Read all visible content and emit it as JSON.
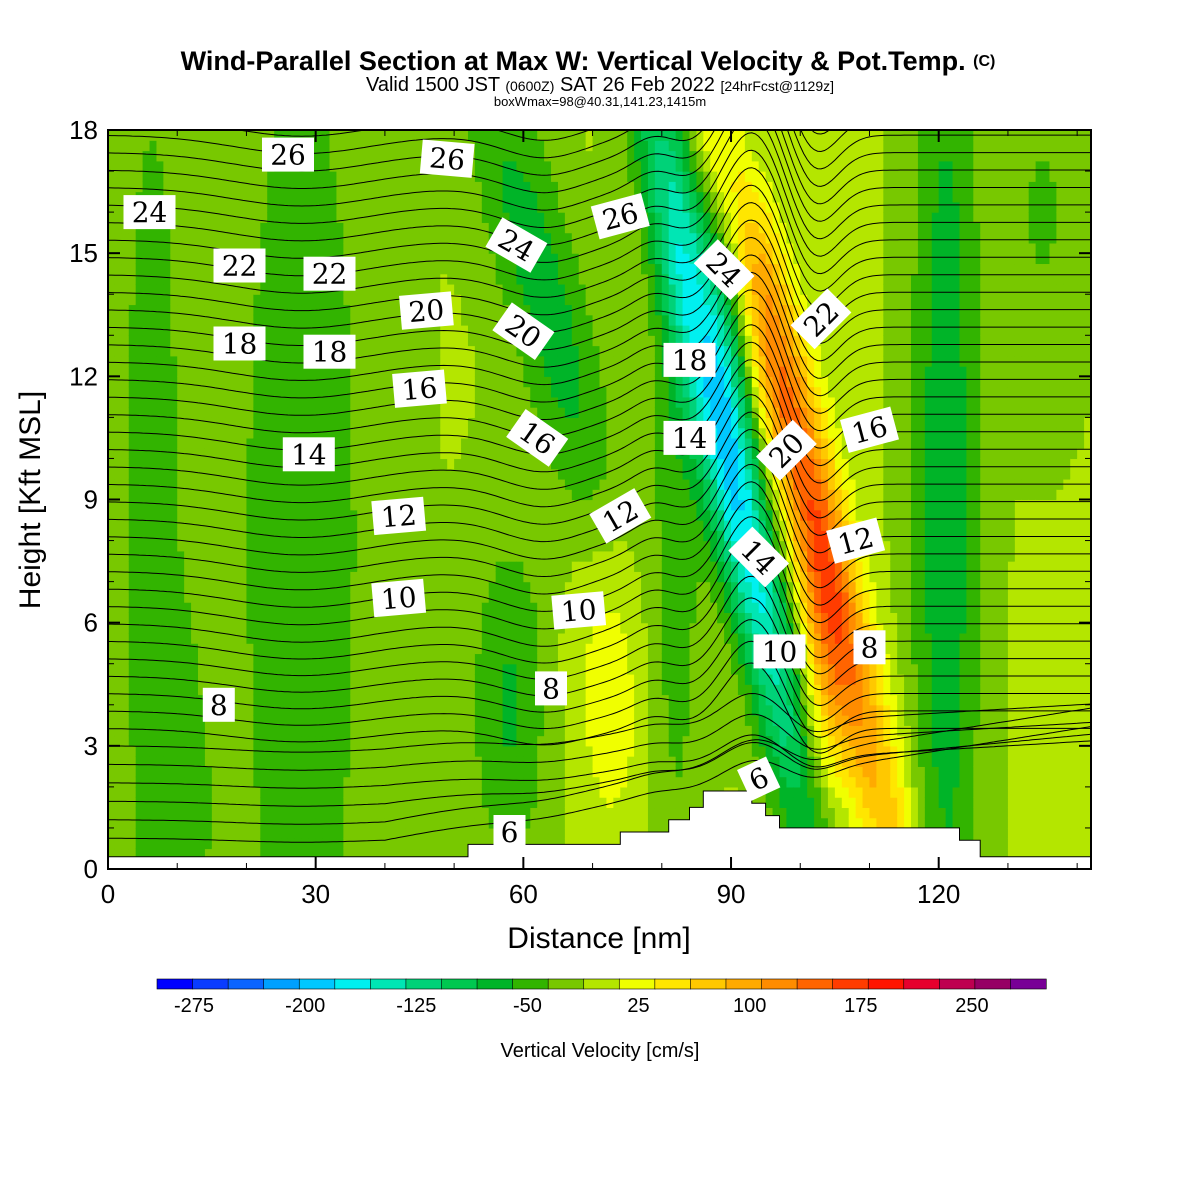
{
  "chart_data": {
    "type": "heatmap",
    "title": "Wind-Parallel Section at Max W: Vertical Velocity & Pot.Temp.",
    "title_unit": "(C)",
    "subtitle_parts": [
      "Valid 1500 JST",
      "(0600Z)",
      "SAT 26 Feb 2022",
      "[24hrFcst@1129z]"
    ],
    "subtitle2": "boxWmax=98@40.31,141.23,1415m",
    "xlabel": "Distance [nm]",
    "ylabel": "Height [Kft MSL]",
    "xlim": [
      0,
      142
    ],
    "ylim": [
      0,
      18
    ],
    "xticks": [
      0,
      30,
      60,
      90,
      120
    ],
    "xtick_labels": [
      "0",
      "30",
      "60",
      "90",
      "120"
    ],
    "yticks": [
      0,
      3,
      6,
      9,
      12,
      15,
      18
    ],
    "ytick_labels": [
      "0",
      "3",
      "6",
      "9",
      "12",
      "15",
      "18"
    ],
    "colorbar": {
      "label": "Vertical Velocity [cm/s]",
      "boundaries": [
        -300,
        -275,
        -250,
        -225,
        -200,
        -175,
        -150,
        -125,
        -100,
        -75,
        -50,
        -25,
        0,
        25,
        50,
        75,
        100,
        125,
        150,
        175,
        200,
        225,
        250,
        275,
        300
      ],
      "colors": [
        "#0000ff",
        "#0a3cff",
        "#0a64ff",
        "#00a0ff",
        "#00c8ff",
        "#00f0f0",
        "#00e6b4",
        "#00d278",
        "#00c850",
        "#00b428",
        "#32b400",
        "#78c800",
        "#b4e600",
        "#f0ff00",
        "#ffe600",
        "#ffc800",
        "#ffaa00",
        "#ff8c00",
        "#ff6400",
        "#ff3c00",
        "#ff1400",
        "#e6002d",
        "#be0050",
        "#960064",
        "#780096"
      ],
      "tick_values": [
        -275,
        -200,
        -125,
        -50,
        25,
        100,
        175,
        250
      ],
      "tick_labels": [
        "-275",
        "-200",
        "-125",
        "-50",
        "25",
        "100",
        "175",
        "250"
      ]
    },
    "vertical_velocity_features": [
      {
        "x": 6,
        "z": 9,
        "sx": 5,
        "sz": 14,
        "tilt": 0,
        "w": -32
      },
      {
        "x": 11,
        "z": 1,
        "sx": 3,
        "sz": 3,
        "tilt": 0,
        "w": -25
      },
      {
        "x": 28,
        "z": 8,
        "sx": 8,
        "sz": 12,
        "tilt": 0,
        "w": -42
      },
      {
        "x": 58,
        "z": 4,
        "sx": 4,
        "sz": 3,
        "tilt": 0,
        "w": -55
      },
      {
        "x": 63,
        "z": 14,
        "sx": 4.5,
        "sz": 5,
        "tilt": -1.5,
        "w": -65
      },
      {
        "x": 82,
        "z": 10,
        "sx": 2.8,
        "sz": 8,
        "tilt": 0,
        "w": -40
      },
      {
        "x": 91,
        "z": 9,
        "sx": 3.2,
        "sz": 8,
        "tilt": -1.3,
        "w": -160
      },
      {
        "x": 90,
        "z": 15,
        "sx": 3,
        "sz": 4,
        "tilt": 0,
        "w": -70
      },
      {
        "x": 73,
        "z": 5,
        "sx": 4,
        "sz": 3,
        "tilt": 0,
        "w": 45
      },
      {
        "x": 100,
        "z": 10,
        "sx": 3.2,
        "sz": 8,
        "tilt": -1.4,
        "w": 160
      },
      {
        "x": 103,
        "z": 4,
        "sx": 3,
        "sz": 3,
        "tilt": 0,
        "w": 70
      },
      {
        "x": 121,
        "z": 9,
        "sx": 3.5,
        "sz": 11,
        "tilt": 0,
        "w": -70
      },
      {
        "x": 135,
        "z": 16,
        "sx": 4,
        "sz": 3,
        "tilt": 0,
        "w": -30
      }
    ],
    "terrain": [
      [
        0,
        0.3
      ],
      [
        52,
        0.3
      ],
      [
        52,
        0.6
      ],
      [
        74,
        0.6
      ],
      [
        74,
        0.9
      ],
      [
        81,
        0.9
      ],
      [
        81,
        1.2
      ],
      [
        84,
        1.2
      ],
      [
        84,
        1.5
      ],
      [
        86,
        1.5
      ],
      [
        86,
        1.9
      ],
      [
        93,
        1.9
      ],
      [
        93,
        1.6
      ],
      [
        95,
        1.6
      ],
      [
        95,
        1.3
      ],
      [
        97,
        1.3
      ],
      [
        97,
        1.0
      ],
      [
        123,
        1.0
      ],
      [
        123,
        0.7
      ],
      [
        126,
        0.7
      ],
      [
        126,
        0.3
      ],
      [
        142,
        0.3
      ]
    ],
    "potential_temperature_contours": {
      "levels": [
        6,
        8,
        10,
        12,
        14,
        16,
        18,
        20,
        22,
        24,
        26
      ],
      "labels": [
        {
          "text": "6",
          "x": 58,
          "z": 0.9,
          "angle": 0
        },
        {
          "text": "6",
          "x": 94,
          "z": 2.2,
          "angle": -25
        },
        {
          "text": "8",
          "x": 16,
          "z": 4.0,
          "angle": 0
        },
        {
          "text": "8",
          "x": 64,
          "z": 4.4,
          "angle": 0
        },
        {
          "text": "8",
          "x": 110,
          "z": 5.4,
          "angle": 0
        },
        {
          "text": "10",
          "x": 42,
          "z": 6.6,
          "angle": -5
        },
        {
          "text": "10",
          "x": 68,
          "z": 6.3,
          "angle": -5
        },
        {
          "text": "10",
          "x": 97,
          "z": 5.3,
          "angle": 0
        },
        {
          "text": "12",
          "x": 42,
          "z": 8.6,
          "angle": -5
        },
        {
          "text": "12",
          "x": 74,
          "z": 8.6,
          "angle": -30
        },
        {
          "text": "12",
          "x": 108,
          "z": 8.0,
          "angle": -15
        },
        {
          "text": "14",
          "x": 29,
          "z": 10.1,
          "angle": 0
        },
        {
          "text": "14",
          "x": 84,
          "z": 10.5,
          "angle": 0
        },
        {
          "text": "14",
          "x": 94,
          "z": 7.6,
          "angle": 45
        },
        {
          "text": "16",
          "x": 45,
          "z": 11.7,
          "angle": -5
        },
        {
          "text": "16",
          "x": 62,
          "z": 10.5,
          "angle": 35
        },
        {
          "text": "16",
          "x": 110,
          "z": 10.7,
          "angle": -15
        },
        {
          "text": "18",
          "x": 19,
          "z": 12.8,
          "angle": 0
        },
        {
          "text": "18",
          "x": 32,
          "z": 12.6,
          "angle": 0
        },
        {
          "text": "18",
          "x": 84,
          "z": 12.4,
          "angle": 0
        },
        {
          "text": "20",
          "x": 46,
          "z": 13.6,
          "angle": -5
        },
        {
          "text": "20",
          "x": 60,
          "z": 13.1,
          "angle": 35
        },
        {
          "text": "20",
          "x": 98,
          "z": 10.2,
          "angle": -45
        },
        {
          "text": "22",
          "x": 19,
          "z": 14.7,
          "angle": 0
        },
        {
          "text": "22",
          "x": 32,
          "z": 14.5,
          "angle": 0
        },
        {
          "text": "22",
          "x": 103,
          "z": 13.4,
          "angle": -45
        },
        {
          "text": "24",
          "x": 6,
          "z": 16.0,
          "angle": 0
        },
        {
          "text": "24",
          "x": 59,
          "z": 15.2,
          "angle": 30
        },
        {
          "text": "24",
          "x": 89,
          "z": 14.6,
          "angle": 45
        },
        {
          "text": "26",
          "x": 26,
          "z": 17.4,
          "angle": 0
        },
        {
          "text": "26",
          "x": 49,
          "z": 17.3,
          "angle": 5
        },
        {
          "text": "26",
          "x": 74,
          "z": 15.9,
          "angle": -15
        }
      ]
    }
  }
}
